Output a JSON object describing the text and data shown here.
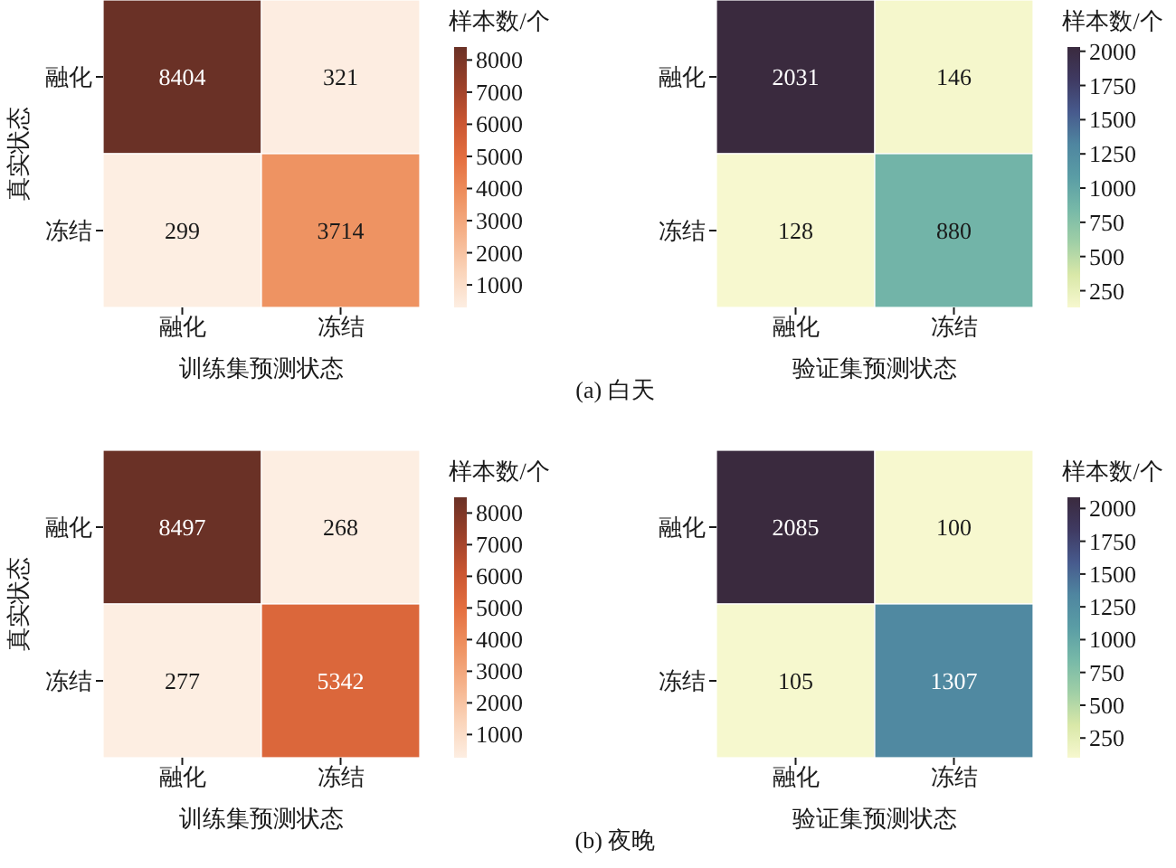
{
  "chart_data": [
    {
      "type": "heatmap",
      "categories": [
        "融化",
        "冻结"
      ],
      "y_categories": [
        "融化",
        "冻结"
      ],
      "cells": [
        [
          8404,
          321
        ],
        [
          299,
          3714
        ]
      ],
      "data_labels": true,
      "xlabel": "训练集预测状态",
      "ylabel": "真实状态",
      "clabel": "样本数/个",
      "clim": [
        299,
        8404
      ],
      "cticks": [
        1000,
        2000,
        3000,
        4000,
        5000,
        6000,
        7000,
        8000
      ],
      "annotations": [
        "(a) 白天"
      ]
    },
    {
      "type": "heatmap",
      "categories": [
        "融化",
        "冻结"
      ],
      "y_categories": [
        "融化",
        "冻结"
      ],
      "cells": [
        [
          2031,
          146
        ],
        [
          128,
          880
        ]
      ],
      "data_labels": true,
      "xlabel": "验证集预测状态",
      "clabel": "样本数/个",
      "clim": [
        128,
        2031
      ],
      "cticks": [
        250,
        500,
        750,
        1000,
        1250,
        1500,
        1750,
        2000
      ]
    },
    {
      "type": "heatmap",
      "categories": [
        "融化",
        "冻结"
      ],
      "y_categories": [
        "融化",
        "冻结"
      ],
      "cells": [
        [
          8497,
          268
        ],
        [
          277,
          5342
        ]
      ],
      "data_labels": true,
      "xlabel": "训练集预测状态",
      "ylabel": "真实状态",
      "clabel": "样本数/个",
      "clim": [
        268,
        8497
      ],
      "cticks": [
        1000,
        2000,
        3000,
        4000,
        5000,
        6000,
        7000,
        8000
      ],
      "annotations": [
        "(b) 夜晚"
      ]
    },
    {
      "type": "heatmap",
      "categories": [
        "融化",
        "冻结"
      ],
      "y_categories": [
        "融化",
        "冻结"
      ],
      "cells": [
        [
          2085,
          100
        ],
        [
          105,
          1307
        ]
      ],
      "data_labels": true,
      "xlabel": "验证集预测状态",
      "clabel": "样本数/个",
      "clim": [
        100,
        2085
      ],
      "cticks": [
        250,
        500,
        750,
        1000,
        1250,
        1500,
        1750,
        2000
      ]
    }
  ]
}
